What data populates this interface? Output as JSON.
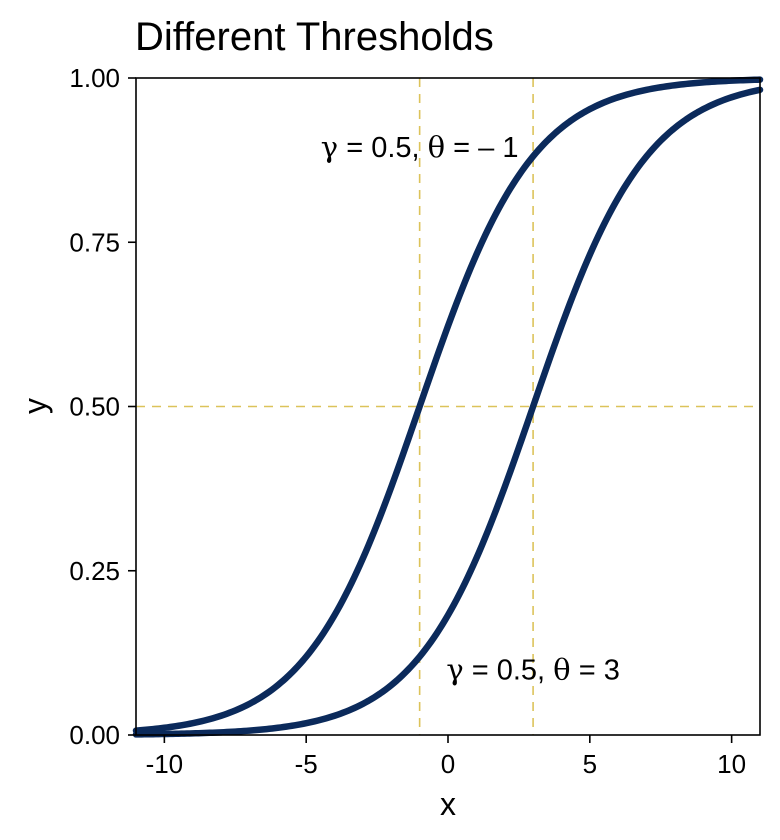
{
  "chart_data": {
    "type": "line",
    "title": "Different Thresholds",
    "xlabel": "x",
    "ylabel": "y",
    "xlim": [
      -11,
      11
    ],
    "ylim": [
      0,
      1
    ],
    "x_ticks": [
      -10,
      -5,
      0,
      5,
      10
    ],
    "x_tick_labels": [
      "-10",
      "-5",
      "0",
      "5",
      "10"
    ],
    "y_ticks": [
      0,
      0.25,
      0.5,
      0.75,
      1
    ],
    "y_tick_labels": [
      "0.00",
      "0.25",
      "0.50",
      "0.75",
      "1.00"
    ],
    "grid": false,
    "series": [
      {
        "gamma": 0.5,
        "theta": -1,
        "x": [
          -11,
          -10,
          -9,
          -8,
          -7,
          -6,
          -5,
          -4,
          -3,
          -2,
          -1,
          0,
          1,
          2,
          3,
          4,
          5,
          6,
          7,
          8,
          9,
          10,
          11
        ],
        "y": [
          0.007,
          0.011,
          0.018,
          0.029,
          0.047,
          0.076,
          0.119,
          0.182,
          0.269,
          0.378,
          0.5,
          0.622,
          0.731,
          0.818,
          0.881,
          0.924,
          0.953,
          0.971,
          0.982,
          0.989,
          0.993,
          0.996,
          0.998
        ]
      },
      {
        "gamma": 0.5,
        "theta": 3,
        "x": [
          -11,
          -10,
          -9,
          -8,
          -7,
          -6,
          -5,
          -4,
          -3,
          -2,
          -1,
          0,
          1,
          2,
          3,
          4,
          5,
          6,
          7,
          8,
          9,
          10,
          11
        ],
        "y": [
          0.001,
          0.002,
          0.002,
          0.004,
          0.007,
          0.011,
          0.018,
          0.029,
          0.047,
          0.076,
          0.119,
          0.182,
          0.269,
          0.378,
          0.5,
          0.622,
          0.731,
          0.818,
          0.881,
          0.924,
          0.953,
          0.971,
          0.982
        ]
      }
    ],
    "reference_lines": {
      "vertical_x": [
        -1,
        3
      ],
      "horizontal_y": [
        0.5
      ]
    },
    "annotations": [
      {
        "gamma_symbol": "γ",
        "gamma_value": "0.5",
        "theta_symbol": "θ",
        "theta_value": "– 1",
        "anchor_x": -1,
        "anchor_y": 0.895
      },
      {
        "gamma_symbol": "γ",
        "gamma_value": "0.5",
        "theta_symbol": "θ",
        "theta_value": "3",
        "anchor_x": 3,
        "anchor_y": 0.1
      }
    ],
    "colors": {
      "curve": "#0b2a5b",
      "reference": "#dcc35a",
      "axis": "#000000"
    }
  }
}
